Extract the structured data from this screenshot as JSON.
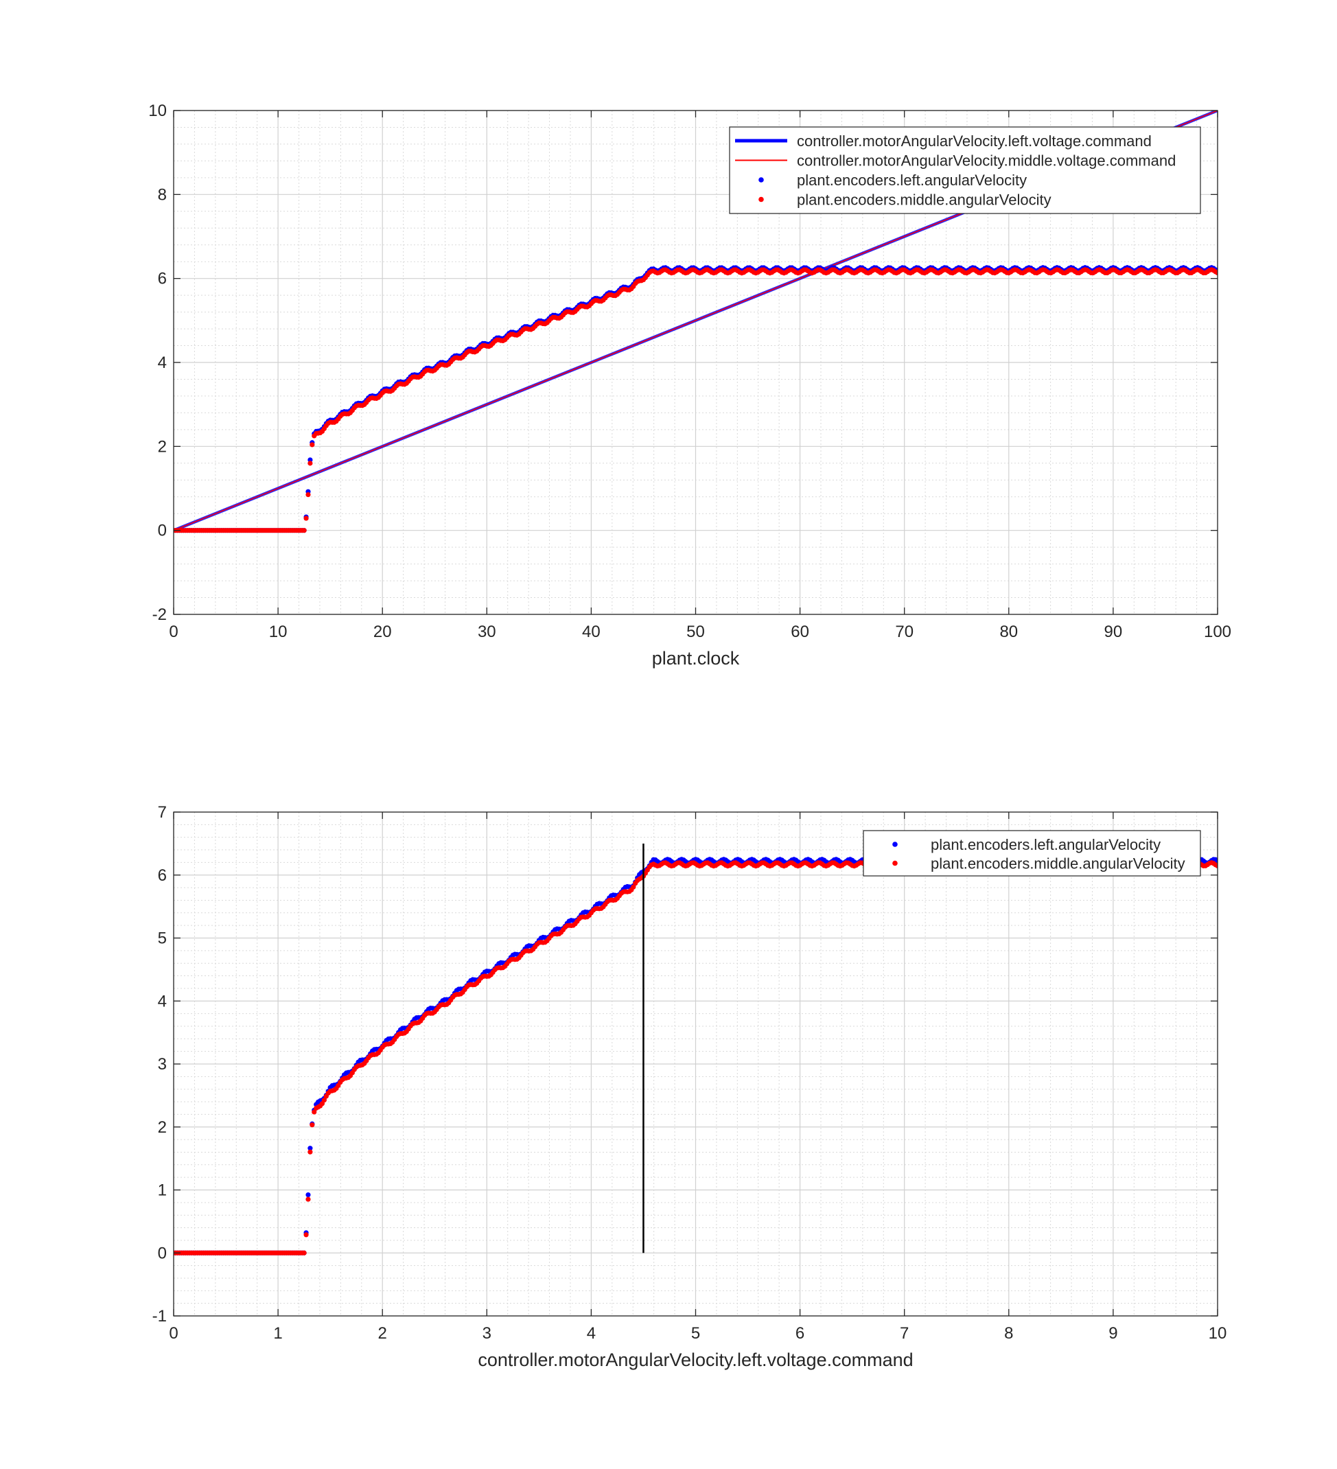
{
  "chart_data": [
    {
      "type": "line",
      "xlabel": "plant.clock",
      "ylabel": "",
      "xlim": [
        0,
        100
      ],
      "ylim": [
        -2,
        10
      ],
      "xticks": [
        0,
        10,
        20,
        30,
        40,
        50,
        60,
        70,
        80,
        90,
        100
      ],
      "yticks": [
        -2,
        0,
        2,
        4,
        6,
        8,
        10
      ],
      "grid": true,
      "minor_grid": true,
      "legend_position": "top-right",
      "series": [
        {
          "name": "controller.motorAngularVelocity.left.voltage.command",
          "style": "line",
          "color": "#0000ff",
          "x": [
            0,
            100
          ],
          "y": [
            0,
            10
          ]
        },
        {
          "name": "controller.motorAngularVelocity.middle.voltage.command",
          "style": "line",
          "color": "#ff0000",
          "x": [
            0,
            100
          ],
          "y": [
            0,
            10
          ]
        },
        {
          "name": "plant.encoders.left.angularVelocity",
          "style": "markers",
          "color": "#0000ff",
          "x": [
            0,
            5,
            10,
            12.5,
            12.8,
            13.0,
            13.2,
            13.5,
            14,
            15,
            16,
            17,
            18,
            20,
            22,
            24,
            26,
            28,
            30,
            32,
            34,
            36,
            38,
            40,
            42,
            44,
            45.2,
            46,
            50,
            55,
            60,
            65,
            70,
            75,
            80,
            85,
            90,
            95,
            100
          ],
          "y": [
            0,
            0,
            0,
            0,
            0.5,
            1.5,
            2.0,
            2.3,
            2.4,
            2.6,
            2.75,
            2.9,
            3.05,
            3.3,
            3.55,
            3.8,
            4.0,
            4.25,
            4.45,
            4.65,
            4.85,
            5.05,
            5.25,
            5.45,
            5.65,
            5.85,
            6.1,
            6.22,
            6.22,
            6.22,
            6.22,
            6.22,
            6.22,
            6.22,
            6.22,
            6.22,
            6.22,
            6.22,
            6.22
          ]
        },
        {
          "name": "plant.encoders.middle.angularVelocity",
          "style": "markers",
          "color": "#ff0000",
          "x": [
            0,
            5,
            10,
            12.5,
            12.8,
            13.0,
            13.2,
            13.5,
            14,
            15,
            16,
            17,
            18,
            20,
            22,
            24,
            26,
            28,
            30,
            32,
            34,
            36,
            38,
            40,
            42,
            44,
            45.2,
            46,
            50,
            55,
            60,
            65,
            70,
            75,
            80,
            85,
            90,
            95,
            100
          ],
          "y": [
            0,
            0,
            0,
            0,
            0.45,
            1.4,
            1.95,
            2.25,
            2.35,
            2.55,
            2.7,
            2.85,
            3.0,
            3.25,
            3.5,
            3.75,
            3.95,
            4.2,
            4.4,
            4.6,
            4.8,
            5.0,
            5.2,
            5.4,
            5.6,
            5.8,
            6.05,
            6.17,
            6.17,
            6.17,
            6.17,
            6.17,
            6.17,
            6.17,
            6.17,
            6.17,
            6.17,
            6.17,
            6.17
          ]
        }
      ]
    },
    {
      "type": "scatter",
      "xlabel": "controller.motorAngularVelocity.left.voltage.command",
      "ylabel": "",
      "xlim": [
        0,
        10
      ],
      "ylim": [
        -1,
        7
      ],
      "xticks": [
        0,
        1,
        2,
        3,
        4,
        5,
        6,
        7,
        8,
        9,
        10
      ],
      "yticks": [
        -1,
        0,
        1,
        2,
        3,
        4,
        5,
        6,
        7
      ],
      "grid": true,
      "minor_grid": true,
      "legend_position": "top-right",
      "vertical_line": {
        "x": 4.5,
        "y_range": [
          0,
          6.5
        ],
        "color": "#000000"
      },
      "series": [
        {
          "name": "plant.encoders.left.angularVelocity",
          "style": "markers",
          "color": "#0000ff",
          "x": [
            0,
            0.5,
            1.0,
            1.25,
            1.28,
            1.3,
            1.32,
            1.35,
            1.4,
            1.5,
            1.6,
            1.7,
            1.8,
            2.0,
            2.2,
            2.4,
            2.6,
            2.8,
            3.0,
            3.2,
            3.4,
            3.6,
            3.8,
            4.0,
            4.2,
            4.4,
            4.52,
            4.6,
            5.0,
            5.5,
            6.0,
            6.5,
            7.0,
            7.5,
            8.0,
            8.5,
            9.0,
            9.5,
            10.0
          ],
          "y": [
            0,
            0,
            0,
            0,
            0.5,
            1.5,
            2.0,
            2.3,
            2.4,
            2.6,
            2.75,
            2.9,
            3.05,
            3.3,
            3.55,
            3.8,
            4.0,
            4.25,
            4.45,
            4.65,
            4.85,
            5.05,
            5.25,
            5.45,
            5.65,
            5.85,
            6.1,
            6.22,
            6.22,
            6.22,
            6.22,
            6.22,
            6.22,
            6.22,
            6.22,
            6.22,
            6.22,
            6.22,
            6.22
          ]
        },
        {
          "name": "plant.encoders.middle.angularVelocity",
          "style": "markers",
          "color": "#ff0000",
          "x": [
            0,
            0.5,
            1.0,
            1.25,
            1.28,
            1.3,
            1.32,
            1.35,
            1.4,
            1.5,
            1.6,
            1.7,
            1.8,
            2.0,
            2.2,
            2.4,
            2.6,
            2.8,
            3.0,
            3.2,
            3.4,
            3.6,
            3.8,
            4.0,
            4.2,
            4.4,
            4.52,
            4.6,
            5.0,
            5.5,
            6.0,
            6.5,
            7.0,
            7.5,
            8.0,
            8.5,
            9.0,
            9.5,
            10.0
          ],
          "y": [
            0,
            0,
            0,
            0,
            0.45,
            1.4,
            1.95,
            2.25,
            2.35,
            2.55,
            2.7,
            2.85,
            3.0,
            3.25,
            3.5,
            3.75,
            3.95,
            4.2,
            4.4,
            4.6,
            4.8,
            5.0,
            5.2,
            5.4,
            5.6,
            5.8,
            6.05,
            6.17,
            6.17,
            6.17,
            6.17,
            6.17,
            6.17,
            6.17,
            6.17,
            6.17,
            6.17,
            6.17,
            6.17
          ]
        }
      ]
    }
  ]
}
